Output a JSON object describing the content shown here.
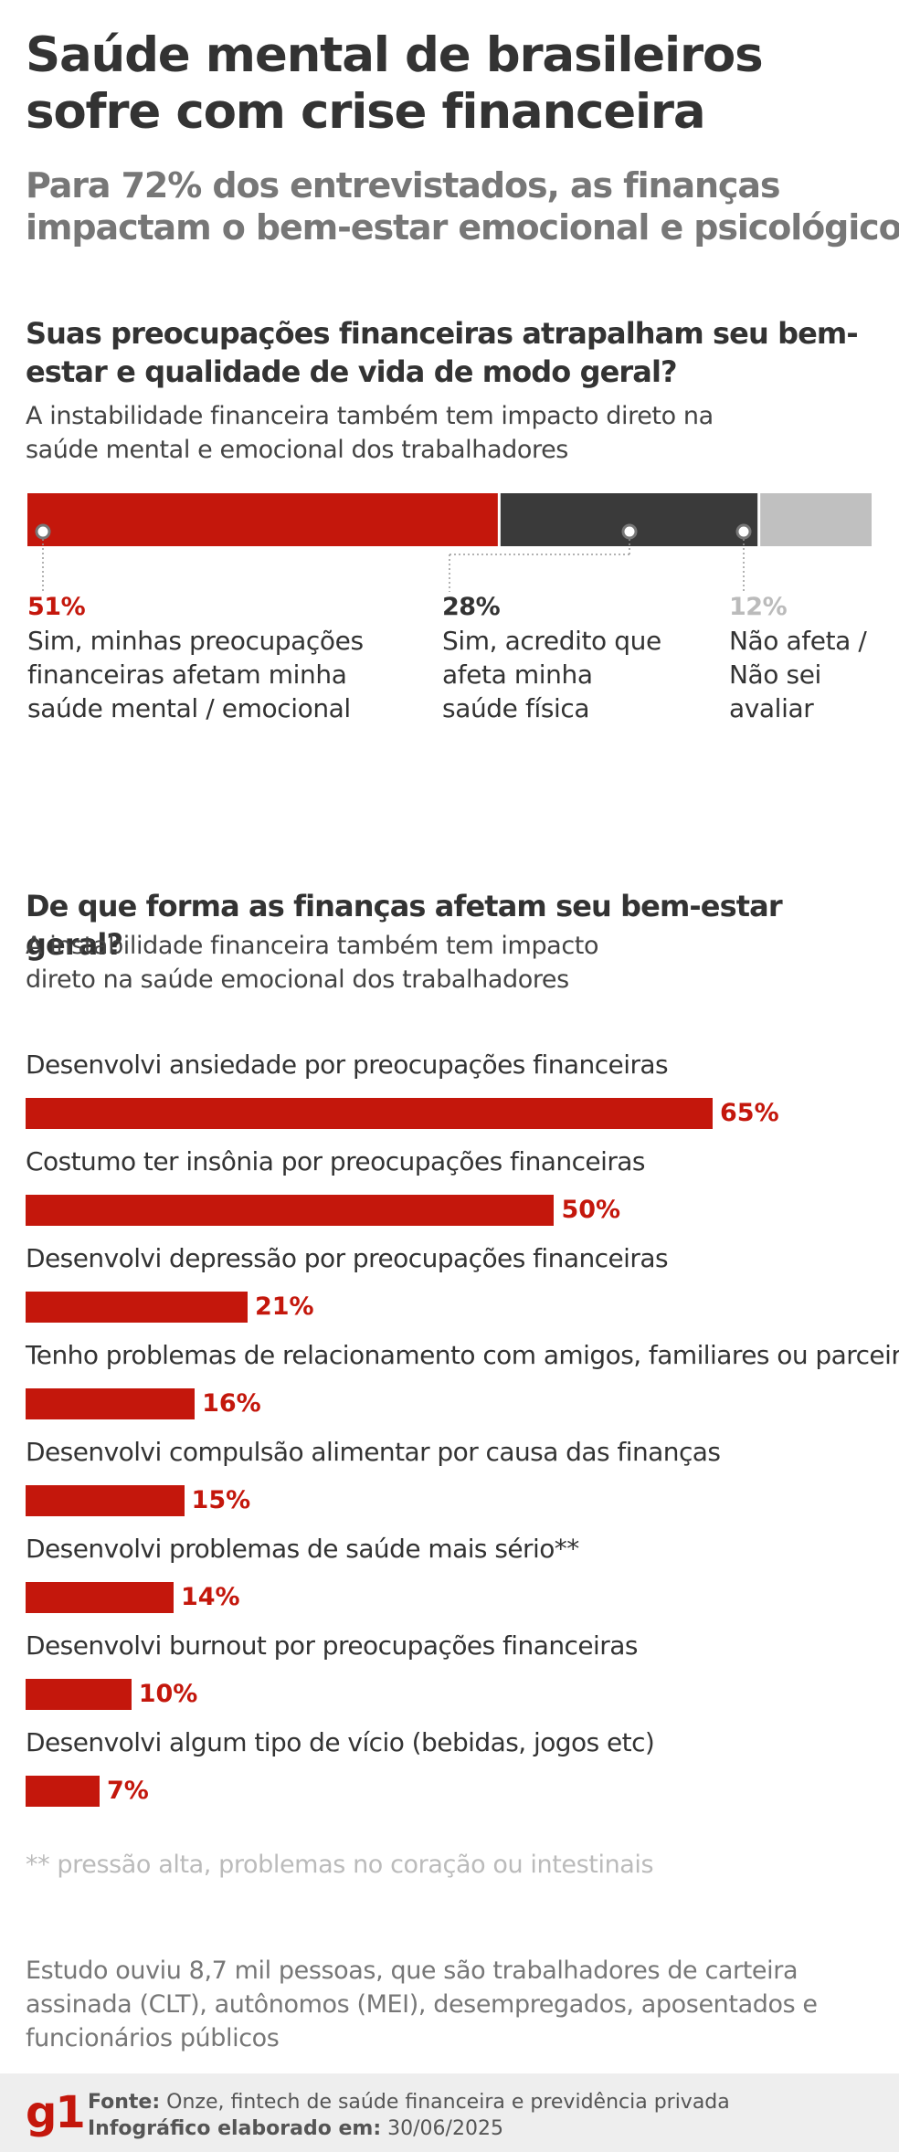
{
  "title": "Saúde mental de brasileiros sofre com crise financeira",
  "subtitle": "Para 72% dos entrevistados, as finanças impactam o bem-estar emocional e psicológico",
  "colors": {
    "red": "#c4170c",
    "dark": "#3a3a3a",
    "gray": "#c0c0c0"
  },
  "chart_data": [
    {
      "type": "bar",
      "stacked": true,
      "title": "Suas preocupações financeiras atrapalham seu bem-estar e qualidade de vida de modo geral?",
      "subtitle": "A instabilidade financeira também tem impacto direto na saúde mental e emocional dos trabalhadores",
      "segments": [
        {
          "value": 51,
          "pct_label": "51%",
          "label": "Sim, minhas preocupações financeiras afetam minha saúde mental / emocional",
          "color": "#c4170c"
        },
        {
          "value": 28,
          "pct_label": "28%",
          "label": "Sim, acredito que afeta minha saúde física",
          "color": "#3a3a3a"
        },
        {
          "value": 12,
          "pct_label": "12%",
          "label": "Não afeta / Não sei avaliar",
          "color": "#c0c0c0"
        }
      ]
    },
    {
      "type": "bar",
      "orientation": "horizontal",
      "title": "De que forma as finanças afetam seu bem-estar geral?",
      "subtitle": "A instabilidade financeira também tem impacto direto na saúde emocional dos trabalhadores",
      "categories": [
        "Desenvolvi ansiedade por preocupações financeiras",
        "Costumo ter insônia por preocupações financeiras",
        "Desenvolvi depressão por preocupações financeiras",
        "Tenho problemas de relacionamento com amigos, familiares ou parceiros",
        "Desenvolvi compulsão alimentar por causa das finanças",
        "Desenvolvi problemas de saúde mais sério**",
        "Desenvolvi burnout por preocupações financeiras",
        "Desenvolvi algum tipo de vício (bebidas, jogos etc)"
      ],
      "values": [
        65,
        50,
        21,
        16,
        15,
        14,
        10,
        7
      ],
      "value_labels": [
        "65%",
        "50%",
        "21%",
        "16%",
        "15%",
        "14%",
        "10%",
        "7%"
      ]
    }
  ],
  "note": "** pressão alta, problemas no coração ou intestinais",
  "study": "Estudo ouviu 8,7 mil pessoas, que são trabalhadores de carteira assinada (CLT), autônomos (MEI), desempregados, aposentados e funcionários públicos",
  "footer": {
    "logo": "g1",
    "source_label": "Fonte:",
    "source_text": "Onze, fintech de saúde financeira e previdência privada",
    "date_label": "Infográfico elaborado em:",
    "date_text": "30/06/2025"
  }
}
